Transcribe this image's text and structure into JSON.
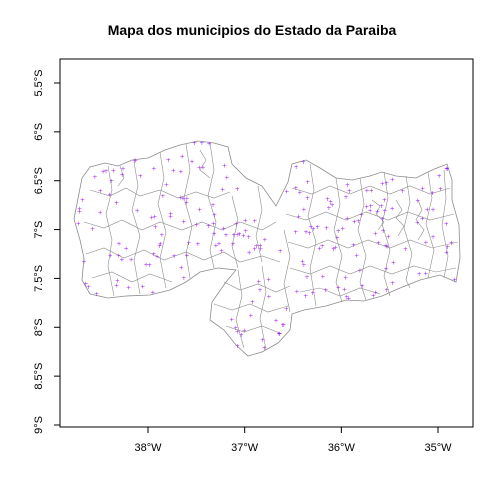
{
  "title": "Mapa dos municipios do Estado da Paraiba",
  "map": {
    "region": "Paraiba",
    "xaxis": {
      "ticks": [
        {
          "value": -38,
          "label": "38°W"
        },
        {
          "value": -37,
          "label": "37°W"
        },
        {
          "value": -36,
          "label": "36°W"
        },
        {
          "value": -35,
          "label": "35°W"
        }
      ],
      "range": [
        -38.95,
        -34.6
      ]
    },
    "yaxis": {
      "ticks": [
        {
          "value": -5.5,
          "label": "5.5°S"
        },
        {
          "value": -6.0,
          "label": "6°S"
        },
        {
          "value": -6.5,
          "label": "6.5°S"
        },
        {
          "value": -7.0,
          "label": "7°S"
        },
        {
          "value": -7.5,
          "label": "7.5°S"
        },
        {
          "value": -8.0,
          "label": "8°S"
        },
        {
          "value": -8.5,
          "label": "8.5°S"
        },
        {
          "value": -9.0,
          "label": "9°S"
        }
      ],
      "range": [
        -9.05,
        -5.2
      ]
    },
    "colors": {
      "boundary": "#8c8c8c",
      "centroid": "#a020f0",
      "frame": "#000000"
    }
  }
}
